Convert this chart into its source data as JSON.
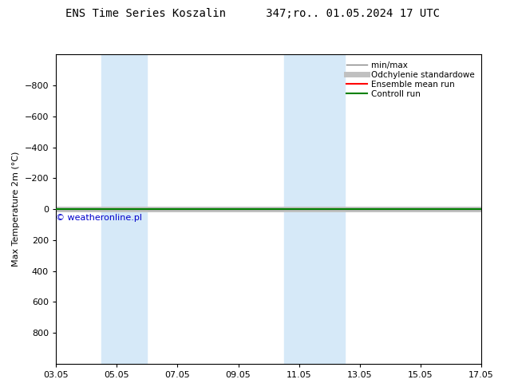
{
  "title": "ENS Time Series Koszalin      347;ro.. 01.05.2024 17 UTC",
  "ylabel": "Max Temperature 2m (°C)",
  "ylim": [
    -1000,
    1000
  ],
  "yticks": [
    -800,
    -600,
    -400,
    -200,
    0,
    200,
    400,
    600,
    800
  ],
  "xtick_labels": [
    "03.05",
    "05.05",
    "07.05",
    "09.05",
    "11.05",
    "13.05",
    "15.05",
    "17.05"
  ],
  "xtick_positions": [
    0,
    2,
    4,
    6,
    8,
    10,
    12,
    14
  ],
  "shaded_bands": [
    {
      "x_start": 1.5,
      "x_end": 3.0
    },
    {
      "x_start": 7.5,
      "x_end": 9.5
    }
  ],
  "band_color": "#d6e9f8",
  "line_y": 0,
  "watermark": "© weatheronline.pl",
  "watermark_color": "#0000cc",
  "legend_entries": [
    "min/max",
    "Odchylenie standardowe",
    "Ensemble mean run",
    "Controll run"
  ],
  "legend_colors": [
    "#808080",
    "#c0c0c0",
    "#ff0000",
    "#008000"
  ],
  "background_color": "#ffffff",
  "line_color_control": "#008000",
  "line_color_ensemble": "#ff0000",
  "line_color_minmax": "#808080",
  "line_color_std": "#c0c0c0"
}
